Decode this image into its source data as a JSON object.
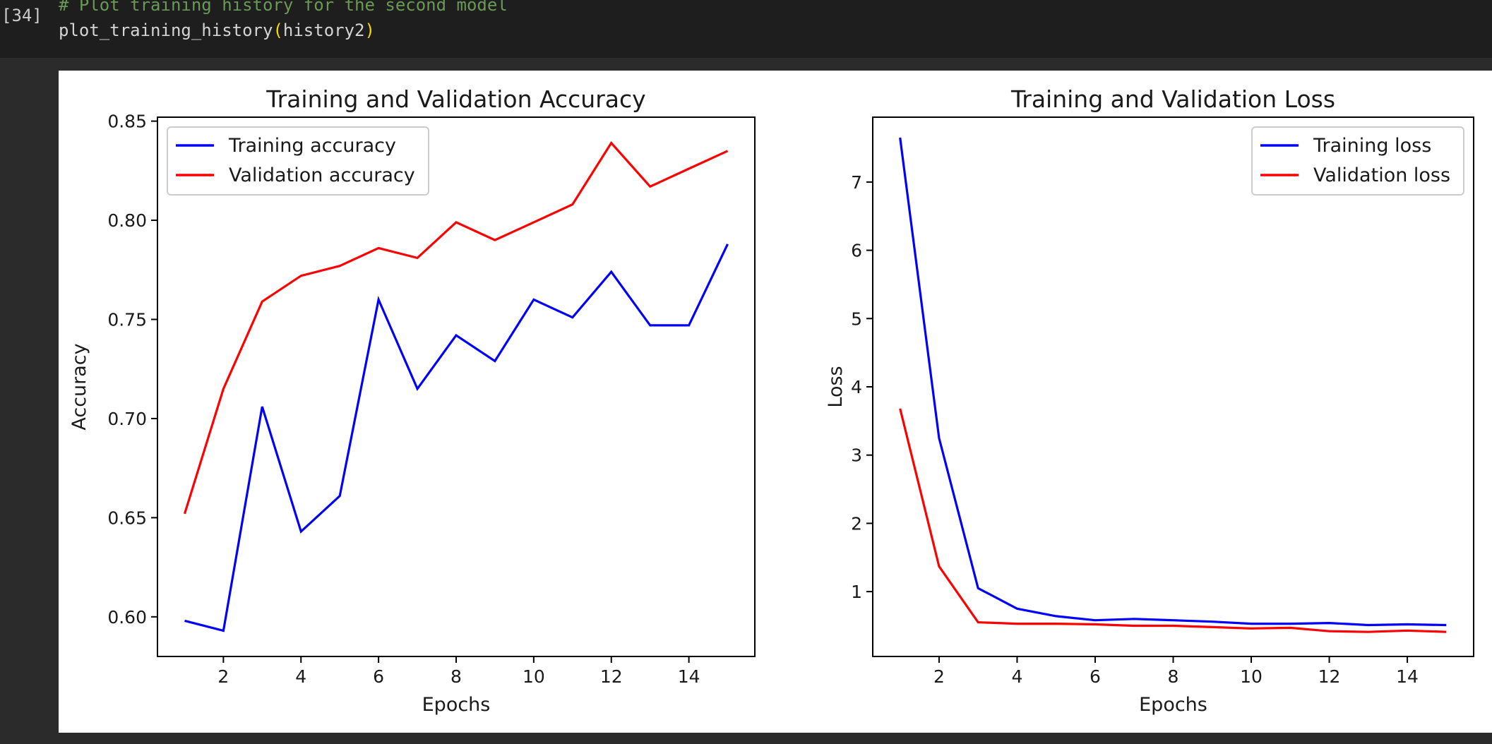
{
  "cell": {
    "execution_count": "[34]",
    "code_comment": "# Plot training history for the second model",
    "code_func": "plot_training_history",
    "code_arg": "history2"
  },
  "chart_data": [
    {
      "type": "line",
      "title": "Training and Validation Accuracy",
      "xlabel": "Epochs",
      "ylabel": "Accuracy",
      "xlim": [
        0.3,
        15.7
      ],
      "ylim": [
        0.58,
        0.852
      ],
      "xticks": [
        2,
        4,
        6,
        8,
        10,
        12,
        14
      ],
      "yticks": [
        0.6,
        0.65,
        0.7,
        0.75,
        0.8,
        0.85
      ],
      "ytick_labels": [
        "0.60",
        "0.65",
        "0.70",
        "0.75",
        "0.80",
        "0.85"
      ],
      "legend": "top-left",
      "x": [
        1,
        2,
        3,
        4,
        5,
        6,
        7,
        8,
        9,
        10,
        11,
        12,
        13,
        14,
        15
      ],
      "series": [
        {
          "name": "Training accuracy",
          "color": "#0000ff",
          "values": [
            0.598,
            0.593,
            0.706,
            0.643,
            0.661,
            0.76,
            0.715,
            0.742,
            0.729,
            0.76,
            0.751,
            0.774,
            0.747,
            0.747,
            0.788
          ]
        },
        {
          "name": "Validation accuracy",
          "color": "#ff0000",
          "values": [
            0.652,
            0.715,
            0.759,
            0.772,
            0.777,
            0.786,
            0.781,
            0.799,
            0.79,
            0.799,
            0.808,
            0.839,
            0.817,
            0.826,
            0.835
          ]
        }
      ]
    },
    {
      "type": "line",
      "title": "Training and Validation Loss",
      "xlabel": "Epochs",
      "ylabel": "Loss",
      "xlim": [
        0.3,
        15.7
      ],
      "ylim": [
        0.05,
        7.95
      ],
      "xticks": [
        2,
        4,
        6,
        8,
        10,
        12,
        14
      ],
      "yticks": [
        1,
        2,
        3,
        4,
        5,
        6,
        7
      ],
      "ytick_labels": [
        "1",
        "2",
        "3",
        "4",
        "5",
        "6",
        "7"
      ],
      "legend": "top-right",
      "x": [
        1,
        2,
        3,
        4,
        5,
        6,
        7,
        8,
        9,
        10,
        11,
        12,
        13,
        14,
        15
      ],
      "series": [
        {
          "name": "Training loss",
          "color": "#0000ff",
          "values": [
            7.65,
            3.25,
            1.05,
            0.75,
            0.64,
            0.58,
            0.6,
            0.58,
            0.56,
            0.53,
            0.53,
            0.54,
            0.51,
            0.52,
            0.51
          ]
        },
        {
          "name": "Validation loss",
          "color": "#ff0000",
          "values": [
            3.68,
            1.37,
            0.55,
            0.53,
            0.53,
            0.52,
            0.5,
            0.5,
            0.48,
            0.46,
            0.47,
            0.42,
            0.41,
            0.43,
            0.41
          ]
        }
      ]
    }
  ]
}
